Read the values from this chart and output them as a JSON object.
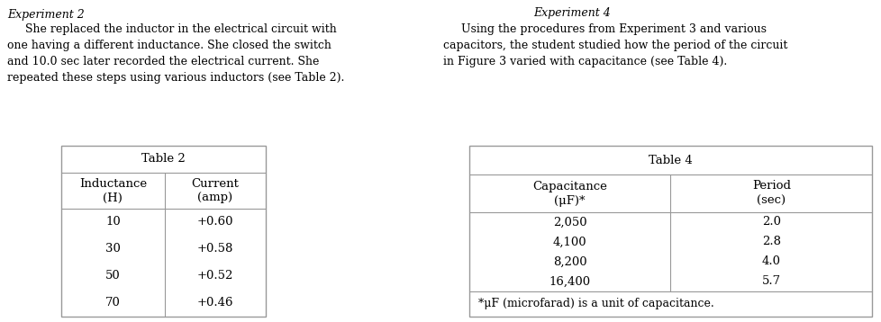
{
  "exp2_title": "Experiment 2",
  "exp2_body_indent": "     She replaced the inductor in the electrical circuit with\none having a different inductance. She closed the switch\nand 10.0 sec later recorded the electrical current. She\nrepeated these steps using various inductors (see Table 2).",
  "table2_title": "Table 2",
  "table2_col1_header": "Inductance\n(H)",
  "table2_col2_header": "Current\n(amp)",
  "table2_col1_data": [
    "10",
    "30",
    "50",
    "70"
  ],
  "table2_col2_data": [
    "+0.60",
    "+0.58",
    "+0.52",
    "+0.46"
  ],
  "exp4_title": "Experiment 4",
  "exp4_body_indent": "     Using the procedures from Experiment 3 and various\ncapacitors, the student studied how the period of the circuit\nin Figure 3 varied with capacitance (see Table 4).",
  "table4_title": "Table 4",
  "table4_col1_header": "Capacitance\n(μF)*",
  "table4_col2_header": "Period\n(sec)",
  "table4_col1_data": [
    "2,050",
    "4,100",
    "8,200",
    "16,400"
  ],
  "table4_col2_data": [
    "2.0",
    "2.8",
    "4.0",
    "5.7"
  ],
  "table4_footnote": "*μF (microfarad) is a unit of capacitance.",
  "bg_color": "#ffffff",
  "text_color": "#000000",
  "line_color": "#999999",
  "font_size": 9.0,
  "table_font_size": 9.5
}
